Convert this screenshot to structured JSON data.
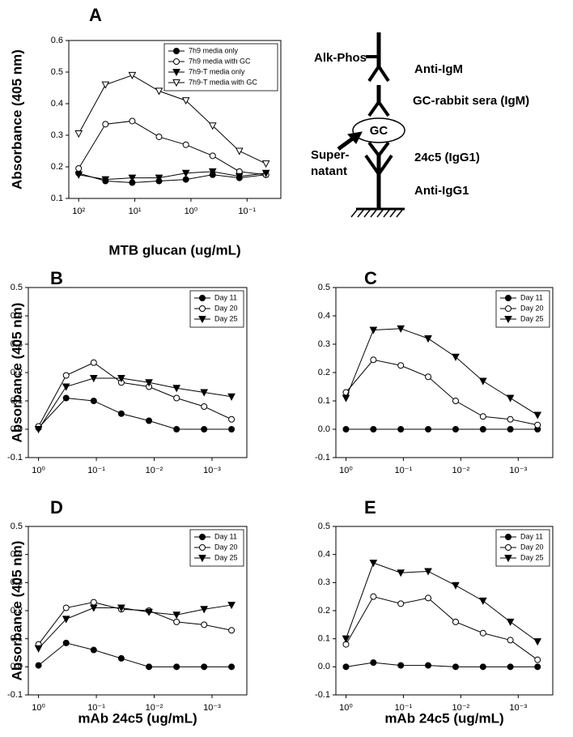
{
  "chart_data": [
    {
      "type": "line",
      "panel": "A",
      "y_label": "Absorbance  (405 nm)",
      "x_label": "MTB glucan (ug/mL)",
      "log_x": true,
      "x": [
        100,
        33.3,
        11.1,
        3.7,
        1.23,
        0.41,
        0.137,
        0.046
      ],
      "xlim": [
        150,
        0.025
      ],
      "xticks": [
        {
          "value": 100,
          "label": "10²"
        },
        {
          "value": 10,
          "label": "10¹"
        },
        {
          "value": 1,
          "label": "10⁰"
        },
        {
          "value": 0.1,
          "label": "10⁻¹"
        }
      ],
      "ylim": [
        0.1,
        0.6
      ],
      "yticks": [
        0.1,
        0.2,
        0.3,
        0.4,
        0.5,
        0.6
      ],
      "legend": "upper right",
      "series": [
        {
          "name": "7h9 media only",
          "color": "#000000",
          "marker": "circle",
          "filled": true,
          "values": [
            0.18,
            0.155,
            0.15,
            0.155,
            0.16,
            0.175,
            0.165,
            0.175
          ]
        },
        {
          "name": "7h9 media with GC",
          "color": "#000000",
          "marker": "circle",
          "filled": false,
          "values": [
            0.195,
            0.335,
            0.345,
            0.295,
            0.27,
            0.235,
            0.185,
            0.175
          ]
        },
        {
          "name": "7h9-T media only",
          "color": "#000000",
          "marker": "triangle-down",
          "filled": true,
          "values": [
            0.175,
            0.16,
            0.165,
            0.165,
            0.18,
            0.185,
            0.17,
            0.18
          ]
        },
        {
          "name": "7h9-T media with GC",
          "color": "#000000",
          "marker": "triangle-down",
          "filled": false,
          "values": [
            0.305,
            0.46,
            0.49,
            0.44,
            0.41,
            0.33,
            0.25,
            0.21
          ]
        }
      ]
    },
    {
      "type": "line",
      "panel": "B",
      "y_label": "Absorbance  (405 nm)",
      "log_x": true,
      "x": [
        1,
        0.333,
        0.111,
        0.037,
        0.0123,
        0.0041,
        0.00137,
        0.00046
      ],
      "xlim": [
        1.5,
        0.00025
      ],
      "xticks": [
        {
          "value": 1,
          "label": "10⁰"
        },
        {
          "value": 0.1,
          "label": "10⁻¹"
        },
        {
          "value": 0.01,
          "label": "10⁻²"
        },
        {
          "value": 0.001,
          "label": "10⁻³"
        }
      ],
      "ylim": [
        -0.1,
        0.5
      ],
      "yticks": [
        {
          "value": -0.1,
          "label": "-0.1"
        },
        {
          "value": 0,
          "label": "0.0"
        },
        0.1,
        0.2,
        0.3,
        0.4,
        0.5
      ],
      "legend": "upper right",
      "series": [
        {
          "name": "Day 11",
          "color": "#000000",
          "marker": "circle",
          "filled": true,
          "values": [
            0.005,
            0.11,
            0.1,
            0.055,
            0.03,
            0,
            0,
            0
          ]
        },
        {
          "name": "Day 20",
          "color": "#000000",
          "marker": "circle",
          "filled": false,
          "values": [
            0.01,
            0.19,
            0.235,
            0.165,
            0.15,
            0.11,
            0.08,
            0.035
          ]
        },
        {
          "name": "Day 25",
          "color": "#000000",
          "marker": "triangle-down",
          "filled": true,
          "values": [
            0,
            0.15,
            0.18,
            0.18,
            0.165,
            0.145,
            0.13,
            0.115
          ]
        }
      ]
    },
    {
      "type": "line",
      "panel": "C",
      "log_x": true,
      "x": [
        1,
        0.333,
        0.111,
        0.037,
        0.0123,
        0.0041,
        0.00137,
        0.00046
      ],
      "xlim": [
        1.5,
        0.00025
      ],
      "xticks": [
        {
          "value": 1,
          "label": "10⁰"
        },
        {
          "value": 0.1,
          "label": "10⁻¹"
        },
        {
          "value": 0.01,
          "label": "10⁻²"
        },
        {
          "value": 0.001,
          "label": "10⁻³"
        }
      ],
      "ylim": [
        -0.1,
        0.5
      ],
      "yticks": [
        {
          "value": -0.1,
          "label": "-0.1"
        },
        {
          "value": 0,
          "label": "0.0"
        },
        0.1,
        0.2,
        0.3,
        0.4,
        0.5
      ],
      "legend": "upper right",
      "series": [
        {
          "name": "Day 11",
          "color": "#000000",
          "marker": "circle",
          "filled": true,
          "values": [
            0,
            0,
            0,
            0,
            0,
            0,
            0,
            0
          ]
        },
        {
          "name": "Day 20",
          "color": "#000000",
          "marker": "circle",
          "filled": false,
          "values": [
            0.13,
            0.245,
            0.225,
            0.185,
            0.1,
            0.045,
            0.035,
            0.015
          ]
        },
        {
          "name": "Day 25",
          "color": "#000000",
          "marker": "triangle-down",
          "filled": true,
          "values": [
            0.11,
            0.35,
            0.355,
            0.32,
            0.255,
            0.17,
            0.11,
            0.05
          ]
        }
      ]
    },
    {
      "type": "line",
      "panel": "D",
      "y_label": "Absorbance  (405 nm)",
      "x_label": "mAb 24c5 (ug/mL)",
      "log_x": true,
      "x": [
        1,
        0.333,
        0.111,
        0.037,
        0.0123,
        0.0041,
        0.00137,
        0.00046
      ],
      "xlim": [
        1.5,
        0.00025
      ],
      "xticks": [
        {
          "value": 1,
          "label": "10⁰"
        },
        {
          "value": 0.1,
          "label": "10⁻¹"
        },
        {
          "value": 0.01,
          "label": "10⁻²"
        },
        {
          "value": 0.001,
          "label": "10⁻³"
        }
      ],
      "ylim": [
        -0.1,
        0.5
      ],
      "yticks": [
        {
          "value": -0.1,
          "label": "-0.1"
        },
        {
          "value": 0,
          "label": "0.0"
        },
        0.1,
        0.2,
        0.3,
        0.4,
        0.5
      ],
      "legend": "upper right",
      "series": [
        {
          "name": "Day 11",
          "color": "#000000",
          "marker": "circle",
          "filled": true,
          "values": [
            0.005,
            0.085,
            0.06,
            0.03,
            0,
            0,
            0,
            0
          ]
        },
        {
          "name": "Day 20",
          "color": "#000000",
          "marker": "circle",
          "filled": false,
          "values": [
            0.08,
            0.21,
            0.23,
            0.205,
            0.2,
            0.16,
            0.15,
            0.13
          ]
        },
        {
          "name": "Day 25",
          "color": "#000000",
          "marker": "triangle-down",
          "filled": true,
          "values": [
            0.065,
            0.17,
            0.21,
            0.21,
            0.195,
            0.185,
            0.205,
            0.22
          ]
        }
      ]
    },
    {
      "type": "line",
      "panel": "E",
      "x_label": "mAb 24c5 (ug/mL)",
      "log_x": true,
      "x": [
        1,
        0.333,
        0.111,
        0.037,
        0.0123,
        0.0041,
        0.00137,
        0.00046
      ],
      "xlim": [
        1.5,
        0.00025
      ],
      "xticks": [
        {
          "value": 1,
          "label": "10⁰"
        },
        {
          "value": 0.1,
          "label": "10⁻¹"
        },
        {
          "value": 0.01,
          "label": "10⁻²"
        },
        {
          "value": 0.001,
          "label": "10⁻³"
        }
      ],
      "ylim": [
        -0.1,
        0.5
      ],
      "yticks": [
        {
          "value": -0.1,
          "label": "-0.1"
        },
        {
          "value": 0,
          "label": "0.0"
        },
        0.1,
        0.2,
        0.3,
        0.4,
        0.5
      ],
      "legend": "upper right",
      "series": [
        {
          "name": "Day 11",
          "color": "#000000",
          "marker": "circle",
          "filled": true,
          "values": [
            0,
            0.015,
            0.005,
            0.005,
            0,
            0,
            0,
            0
          ]
        },
        {
          "name": "Day 20",
          "color": "#000000",
          "marker": "circle",
          "filled": false,
          "values": [
            0.08,
            0.25,
            0.225,
            0.245,
            0.16,
            0.12,
            0.095,
            0.025
          ]
        },
        {
          "name": "Day 25",
          "color": "#000000",
          "marker": "triangle-down",
          "filled": true,
          "values": [
            0.1,
            0.37,
            0.335,
            0.34,
            0.29,
            0.235,
            0.16,
            0.09
          ]
        }
      ]
    }
  ],
  "diagram": {
    "alk_phos": "Alk-Phos",
    "anti_igm": "Anti-IgM",
    "rabbit_sera": "GC-rabbit sera (IgM)",
    "gc": "GC",
    "supernatant": [
      "Super-",
      "natant"
    ],
    "mab": "24c5 (IgG1)",
    "anti_igg1": "Anti-IgG1"
  }
}
